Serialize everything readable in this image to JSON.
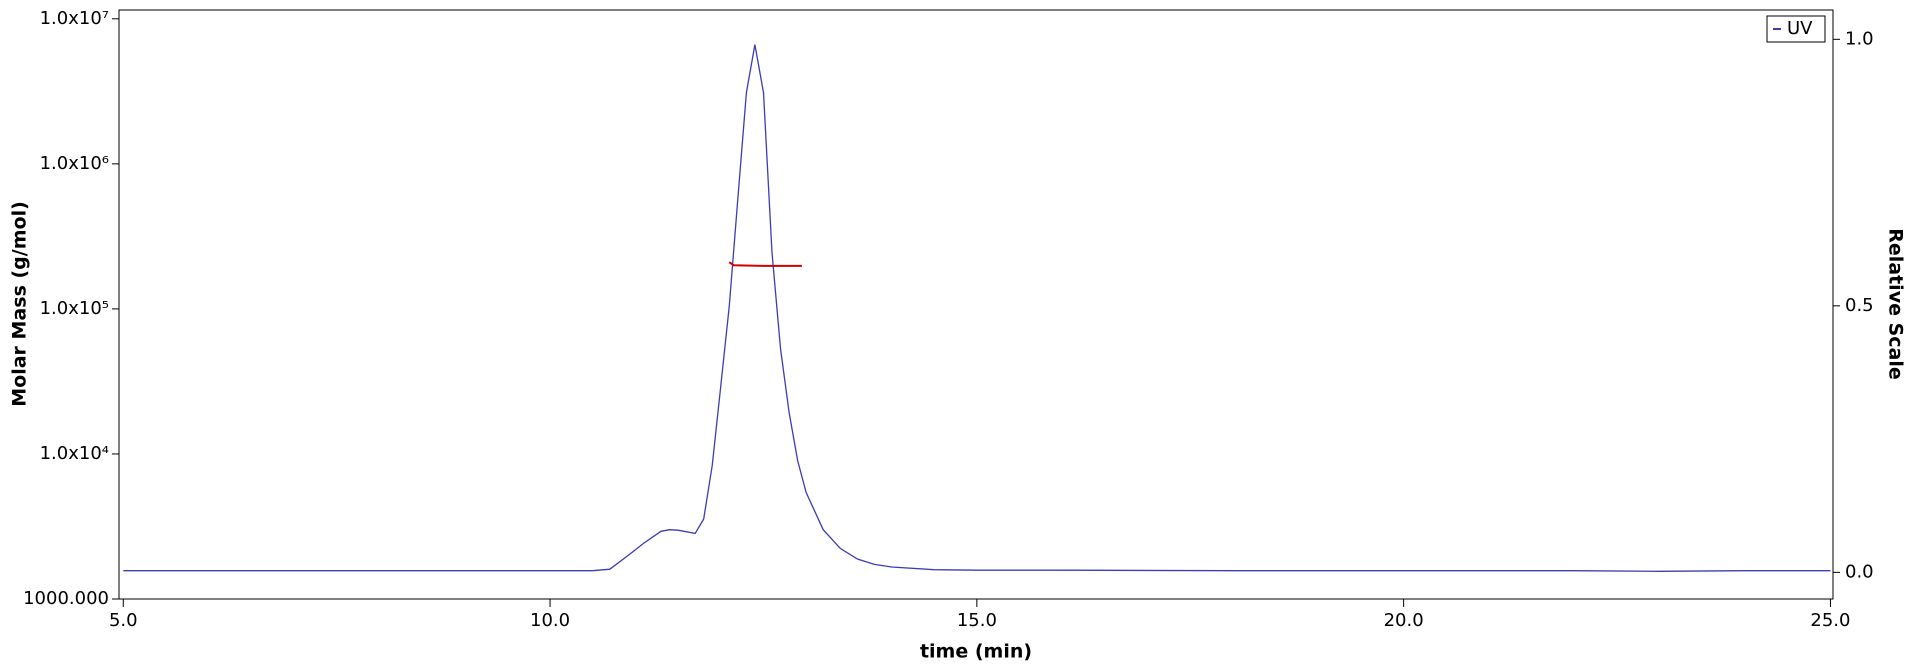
{
  "chart_data": {
    "type": "line",
    "xlabel": "time (min)",
    "ylabel": "Molar Mass (g/mol)",
    "y2label": "Relative Scale",
    "xlim": [
      4.95,
      25.03
    ],
    "xticks": [
      {
        "value": 5,
        "label": "5.0"
      },
      {
        "value": 10,
        "label": "10.0"
      },
      {
        "value": 15,
        "label": "15.0"
      },
      {
        "value": 20,
        "label": "20.0"
      },
      {
        "value": 25,
        "label": "25.0"
      }
    ],
    "yscale": "log",
    "ylim": [
      1000,
      11500000
    ],
    "yticks": [
      {
        "value": 1000,
        "label": "1000.000"
      },
      {
        "value": 10000,
        "label": "1.0x10⁴"
      },
      {
        "value": 100000,
        "label": "1.0x10⁵"
      },
      {
        "value": 1000000,
        "label": "1.0x10⁶"
      },
      {
        "value": 10000000,
        "label": "1.0x10⁷"
      }
    ],
    "y2lim": [
      -0.05,
      1.055
    ],
    "y2ticks": [
      {
        "value": 0,
        "label": "0.0"
      },
      {
        "value": 0.5,
        "label": "0.5"
      },
      {
        "value": 1,
        "label": "1.0"
      }
    ],
    "legend": "upper right",
    "series": [
      {
        "name": "UV",
        "color": "#3c3cb4",
        "axis": "y2",
        "x": [
          5,
          6,
          7,
          8,
          9,
          10,
          10.5,
          10.7,
          10.9,
          11.1,
          11.3,
          11.4,
          11.5,
          11.7,
          11.8,
          11.9,
          12.0,
          12.1,
          12.2,
          12.3,
          12.4,
          12.5,
          12.6,
          12.7,
          12.8,
          12.9,
          13.0,
          13.2,
          13.4,
          13.6,
          13.8,
          14.0,
          14.5,
          15,
          16,
          18,
          20,
          22,
          23,
          24,
          25
        ],
        "values": [
          0.003,
          0.003,
          0.003,
          0.003,
          0.003,
          0.003,
          0.003,
          0.006,
          0.03,
          0.055,
          0.077,
          0.08,
          0.079,
          0.073,
          0.1,
          0.2,
          0.35,
          0.5,
          0.7,
          0.9,
          0.99,
          0.9,
          0.6,
          0.42,
          0.3,
          0.21,
          0.15,
          0.08,
          0.045,
          0.025,
          0.015,
          0.01,
          0.005,
          0.004,
          0.004,
          0.003,
          0.003,
          0.003,
          0.002,
          0.003,
          0.003
        ]
      },
      {
        "color": "#d00000",
        "x": [
          12.1,
          12.15,
          12.5,
          12.95
        ],
        "values": [
          210000,
          200000,
          198000,
          198000
        ]
      }
    ]
  }
}
